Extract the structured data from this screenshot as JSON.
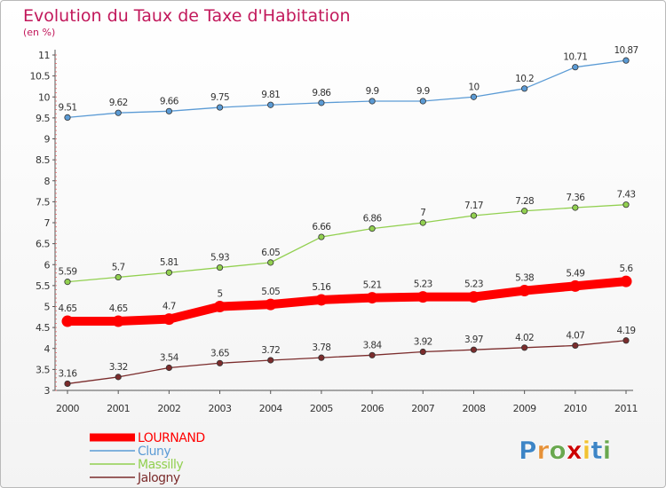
{
  "chart_data": {
    "type": "line",
    "title": "Evolution du Taux de Taxe d'Habitation",
    "subtitle": "(en %)",
    "x": [
      "2000",
      "2001",
      "2002",
      "2003",
      "2004",
      "2005",
      "2006",
      "2007",
      "2008",
      "2009",
      "2010",
      "2011"
    ],
    "ylim": [
      3,
      11
    ],
    "yticks": [
      "3",
      "3.5",
      "4",
      "4.5",
      "5",
      "5.5",
      "6",
      "6.5",
      "7",
      "7.5",
      "8",
      "8.5",
      "9",
      "9.5",
      "10",
      "10.5",
      "11"
    ],
    "grid": false,
    "legend_position": "bottom-left",
    "series": [
      {
        "name": "LOURNAND",
        "color": "#ff0000",
        "values": [
          4.65,
          4.65,
          4.7,
          5,
          5.05,
          5.16,
          5.21,
          5.23,
          5.23,
          5.38,
          5.49,
          5.6
        ],
        "labels": [
          "4.65",
          "4.65",
          "4.7",
          "5",
          "5.05",
          "5.16",
          "5.21",
          "5.23",
          "5.23",
          "5.38",
          "5.49",
          "5.6"
        ]
      },
      {
        "name": "Cluny",
        "color": "#5b9bd5",
        "values": [
          9.51,
          9.62,
          9.66,
          9.75,
          9.81,
          9.86,
          9.9,
          9.9,
          10,
          10.2,
          10.71,
          10.87
        ],
        "labels": [
          "9.51",
          "9.62",
          "9.66",
          "9.75",
          "9.81",
          "9.86",
          "9.9",
          "9.9",
          "10",
          "10.2",
          "10.71",
          "10.87"
        ]
      },
      {
        "name": "Massilly",
        "color": "#92d050",
        "values": [
          5.59,
          5.7,
          5.81,
          5.93,
          6.05,
          6.66,
          6.86,
          7,
          7.17,
          7.28,
          7.36,
          7.43
        ],
        "labels": [
          "5.59",
          "5.7",
          "5.81",
          "5.93",
          "6.05",
          "6.66",
          "6.86",
          "7",
          "7.17",
          "7.28",
          "7.36",
          "7.43"
        ]
      },
      {
        "name": "Jalogny",
        "color": "#7b2c2c",
        "values": [
          3.16,
          3.32,
          3.54,
          3.65,
          3.72,
          3.78,
          3.84,
          3.92,
          3.97,
          4.02,
          4.07,
          4.19
        ],
        "labels": [
          "3.16",
          "3.32",
          "3.54",
          "3.65",
          "3.72",
          "3.78",
          "3.84",
          "3.92",
          "3.97",
          "4.02",
          "4.07",
          "4.19"
        ]
      }
    ]
  },
  "logo": {
    "letters": [
      "P",
      "r",
      "o",
      "x",
      "i",
      "t",
      "i"
    ],
    "colors": [
      "#3d85c6",
      "#e69138",
      "#6aa84f",
      "#cc0000",
      "#f1c232",
      "#3d85c6",
      "#6aa84f"
    ]
  }
}
